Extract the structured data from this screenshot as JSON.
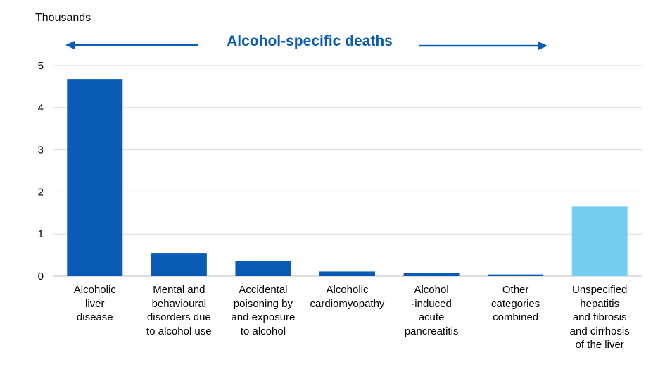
{
  "chart_data": {
    "type": "bar",
    "unit_label": "Thousands",
    "banner": "Alcohol-specific deaths",
    "categories": [
      "Alcoholic\nliver\ndisease",
      "Mental and\nbehavioural\ndisorders due\nto alcohol use",
      "Accidental\npoisoning by\nand exposure\nto alcohol",
      "Alcoholic\ncardiomyopathy",
      "Alcohol\n-induced\nacute\npancreatitis",
      "Other\ncategories\ncombined",
      "Unspecified\nhepatitis\nand fibrosis\nand cirrhosis\nof the liver"
    ],
    "values": [
      4.68,
      0.55,
      0.36,
      0.11,
      0.08,
      0.04,
      1.65
    ],
    "bar_colors": [
      "#0a5bb5",
      "#0a5bb5",
      "#0a5bb5",
      "#0a5bb5",
      "#0a5bb5",
      "#0a5bb5",
      "#75cdef"
    ],
    "y_ticks": [
      "0",
      "1",
      "2",
      "3",
      "4",
      "5"
    ],
    "ylim": [
      0,
      5
    ],
    "grid": true,
    "colors": {
      "primary": "#0a5bb5",
      "highlight": "#75cdef",
      "grid": "#d9d9d9"
    }
  }
}
